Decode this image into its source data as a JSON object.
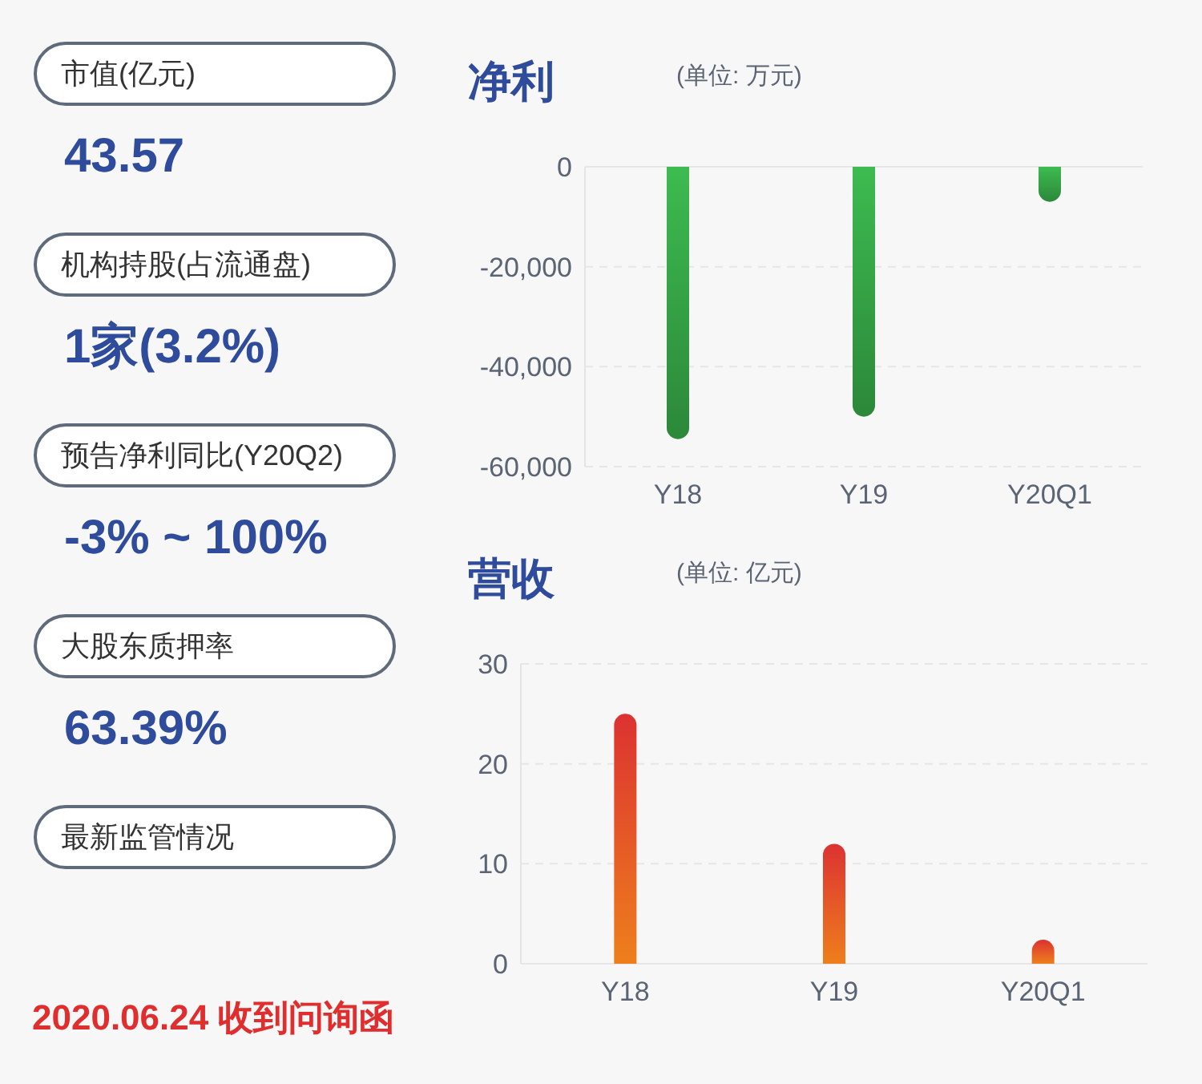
{
  "chart_data": [
    {
      "type": "other",
      "annotations": [
        "市值(亿元)",
        "43.57",
        "机构持股(占流通盘)",
        "1家(3.2%)",
        "预告净利同比(Y20Q2)",
        "-3% ~ 100%",
        "大股东质押率",
        "63.39%",
        "最新监管情况",
        "2020.06.24 收到问询函"
      ]
    },
    {
      "type": "bar",
      "title": "净利",
      "subtitle": "(单位: 万元)",
      "categories": [
        "Y18",
        "Y19",
        "Y20Q1"
      ],
      "values": [
        -54500,
        -50000,
        -7000
      ],
      "color": "#3dbb50",
      "ylim": [
        -60000,
        0
      ],
      "yticks": [
        {
          "value": -60000,
          "label": "-60,000"
        },
        {
          "value": -40000,
          "label": "-40,000"
        },
        {
          "value": -20000,
          "label": "-20,000"
        },
        0
      ],
      "grid": "y"
    },
    {
      "type": "bar",
      "title": "营收",
      "subtitle": "(单位: 亿元)",
      "categories": [
        "Y18",
        "Y19",
        "Y20Q1"
      ],
      "values": [
        25,
        12,
        2.4
      ],
      "color": "#dc3232",
      "ylim": [
        0,
        30
      ],
      "yticks": [
        0,
        10,
        20,
        30
      ],
      "grid": "y"
    }
  ]
}
